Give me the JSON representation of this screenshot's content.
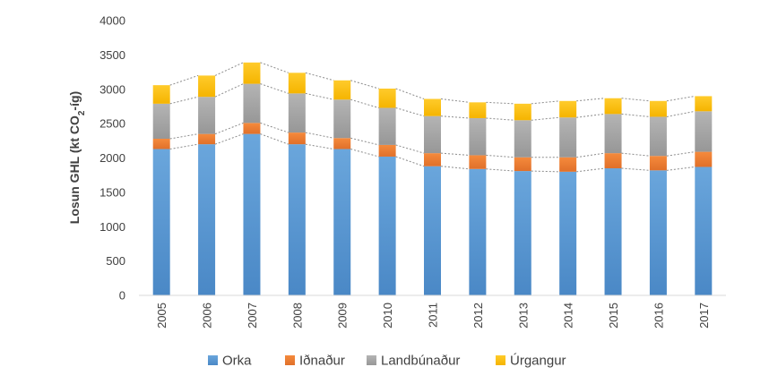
{
  "chart_data": {
    "type": "bar",
    "stacked": true,
    "ylabel_main": "Losun GHL (kt CO",
    "ylabel_sub": "2",
    "ylabel_tail": "-íg)",
    "ylim": [
      0,
      4000
    ],
    "yticks": [
      "0",
      "500",
      "1000",
      "1500",
      "2000",
      "2500",
      "3000",
      "3500",
      "4000"
    ],
    "categories": [
      "2005",
      "2006",
      "2007",
      "2008",
      "2009",
      "2010",
      "2011",
      "2012",
      "2013",
      "2014",
      "2015",
      "2016",
      "2017"
    ],
    "series": [
      {
        "name": "Orka",
        "color": "#5b9bd5",
        "values": [
          2130,
          2200,
          2350,
          2200,
          2130,
          2020,
          1880,
          1840,
          1810,
          1800,
          1850,
          1820,
          1870
        ]
      },
      {
        "name": "Iðnaður",
        "color": "#ed7d31",
        "values": [
          150,
          150,
          160,
          170,
          160,
          170,
          190,
          200,
          200,
          210,
          220,
          210,
          220
        ]
      },
      {
        "name": "Landbúnaður",
        "color": "#a5a5a5",
        "values": [
          510,
          540,
          570,
          570,
          560,
          540,
          540,
          540,
          540,
          580,
          570,
          570,
          590
        ]
      },
      {
        "name": "Úrgangur",
        "color": "#ffc000",
        "values": [
          270,
          310,
          310,
          300,
          280,
          280,
          250,
          230,
          240,
          240,
          230,
          230,
          220
        ]
      }
    ],
    "grid": false,
    "legend_position": "bottom",
    "connector_lines": true
  }
}
